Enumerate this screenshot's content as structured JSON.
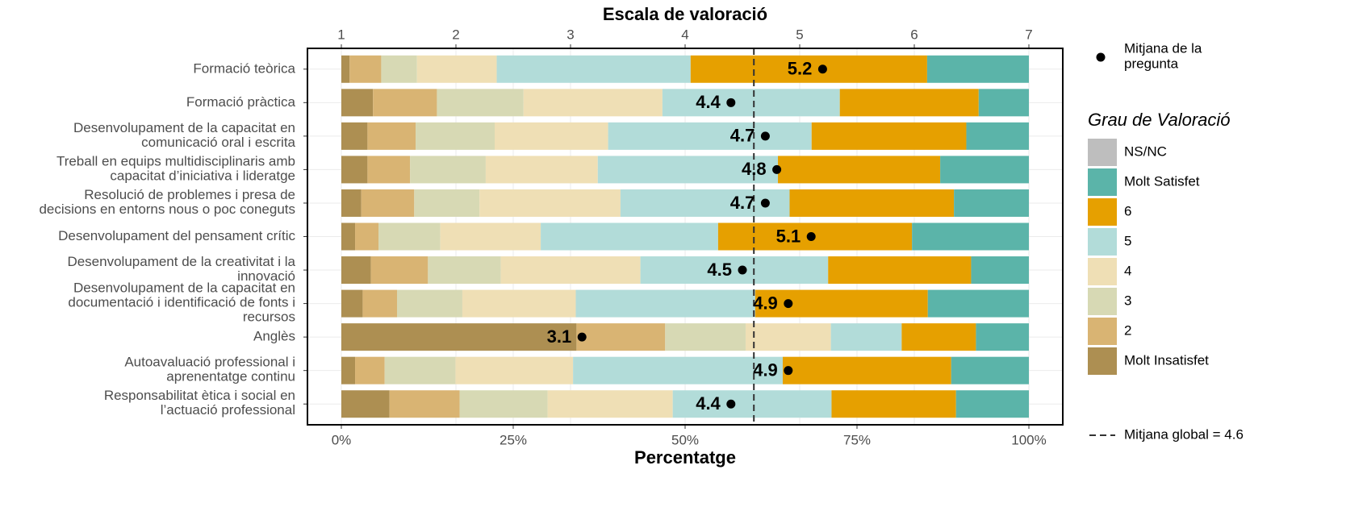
{
  "chart_data": {
    "type": "stacked_bar_horizontal",
    "title": "Escala de valoració",
    "xlabel": "Percentatge",
    "categories": [
      "Formació teòrica",
      "Formació pràctica",
      "Desenvolupament de la capacitat en\ncomunicació oral i escrita",
      "Treball en equips multidisciplinaris amb\ncapacitat d’iniciativa i lideratge",
      "Resolució de problemes i presa de\ndecisions en entorns nous o poc coneguts",
      "Desenvolupament del pensament crític",
      "Desenvolupament de la creativitat i la\ninnovació",
      "Desenvolupament de la capacitat en\ndocumentació i identificació de fonts i\nrecursos",
      "Anglès",
      "Autoavaluació professional i\naprenentatge continu",
      "Responsabilitat ètica i social en\nl’actuació professional"
    ],
    "legend_title": "Grau de Valoració",
    "series": [
      {
        "name": "Molt Insatisfet",
        "color": "#ad8f52",
        "values": [
          1.2,
          4.6,
          3.8,
          3.8,
          2.9,
          2.0,
          4.3,
          3.1,
          34.2,
          2.0,
          7.0
        ]
      },
      {
        "name": "2",
        "color": "#d9b473",
        "values": [
          4.6,
          9.3,
          7.0,
          6.2,
          7.7,
          3.4,
          8.3,
          5.0,
          12.9,
          4.3,
          10.2
        ]
      },
      {
        "name": "3",
        "color": "#d7d9b4",
        "values": [
          5.2,
          12.6,
          11.5,
          11.0,
          9.5,
          9.0,
          10.6,
          9.5,
          11.7,
          10.3,
          12.8
        ]
      },
      {
        "name": "4",
        "color": "#efdfb5",
        "values": [
          11.6,
          20.2,
          16.5,
          16.3,
          20.5,
          14.6,
          20.3,
          16.5,
          12.4,
          17.1,
          18.2
        ]
      },
      {
        "name": "5",
        "color": "#b2dcd9",
        "values": [
          28.2,
          25.8,
          29.6,
          26.2,
          24.6,
          25.8,
          27.3,
          26.1,
          10.3,
          30.5,
          23.1
        ]
      },
      {
        "name": "6",
        "color": "#e6a000",
        "values": [
          34.4,
          20.2,
          22.5,
          23.6,
          23.9,
          28.2,
          20.8,
          25.1,
          10.8,
          24.5,
          18.1
        ]
      },
      {
        "name": "Molt Satisfet",
        "color": "#5bb4a9",
        "values": [
          14.8,
          7.3,
          9.1,
          12.9,
          10.9,
          17.0,
          8.4,
          14.7,
          7.7,
          11.3,
          10.6
        ]
      },
      {
        "name": "NS/NC",
        "color": "#bebebe",
        "values": [
          0,
          0,
          0,
          0,
          0,
          0,
          0,
          0,
          0,
          0,
          0
        ]
      }
    ],
    "means": {
      "name": "Mitjana de la\npregunta",
      "color": "#000000",
      "axis": "x2",
      "values": [
        5.2,
        4.4,
        4.7,
        4.8,
        4.7,
        5.1,
        4.5,
        4.9,
        3.1,
        4.9,
        4.4
      ]
    },
    "global_mean": 4.6,
    "global_mean_label": "Mitjana global =  4.6",
    "xlim": [
      0,
      100
    ],
    "xticks": [
      {
        "value": 0,
        "label": "0%"
      },
      {
        "value": 25,
        "label": "25%"
      },
      {
        "value": 50,
        "label": "50%"
      },
      {
        "value": 75,
        "label": "75%"
      },
      {
        "value": 100,
        "label": "100%"
      }
    ],
    "x2lim": [
      1,
      7
    ],
    "x2ticks": [
      1,
      2,
      3,
      4,
      5,
      6,
      7
    ],
    "grid": true
  }
}
